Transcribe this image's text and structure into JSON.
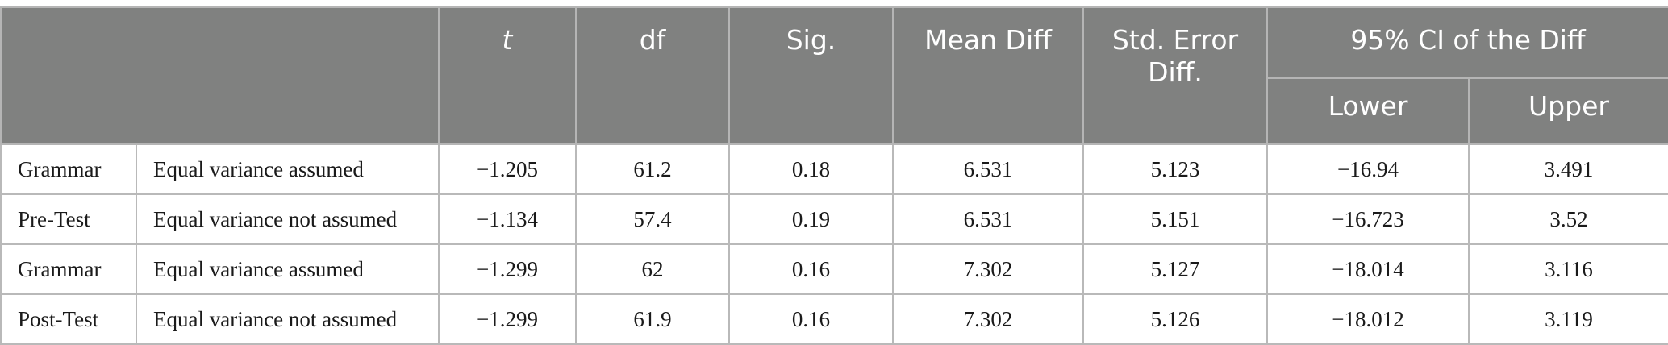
{
  "table": {
    "headers": {
      "blank": "",
      "t": "t",
      "df": "df",
      "sig": "Sig.",
      "mean_diff": "Mean Diff",
      "std_error": "Std. Error Diff.",
      "ci": "95% CI of the Diff",
      "lower": "Lower",
      "upper": "Upper"
    },
    "rows": [
      {
        "group": "Grammar",
        "variance": "Equal variance assumed",
        "t": "−1.205",
        "df": "61.2",
        "sig": "0.18",
        "mean_diff": "6.531",
        "std_error": "5.123",
        "lower": "−16.94",
        "upper": "3.491"
      },
      {
        "group": "Pre-Test",
        "variance": "Equal variance not assumed",
        "t": "−1.134",
        "df": "57.4",
        "sig": "0.19",
        "mean_diff": "6.531",
        "std_error": "5.151",
        "lower": "−16.723",
        "upper": "3.52"
      },
      {
        "group": "Grammar",
        "variance": "Equal variance assumed",
        "t": "−1.299",
        "df": "62",
        "sig": "0.16",
        "mean_diff": "7.302",
        "std_error": "5.127",
        "lower": "−18.014",
        "upper": "3.116"
      },
      {
        "group": "Post-Test",
        "variance": "Equal variance not assumed",
        "t": "−1.299",
        "df": "61.9",
        "sig": "0.16",
        "mean_diff": "7.302",
        "std_error": "5.126",
        "lower": "−18.012",
        "upper": "3.119"
      }
    ]
  },
  "colors": {
    "header_bg": "#808180",
    "header_text": "#ffffff",
    "grid": "#b9b9b9"
  }
}
